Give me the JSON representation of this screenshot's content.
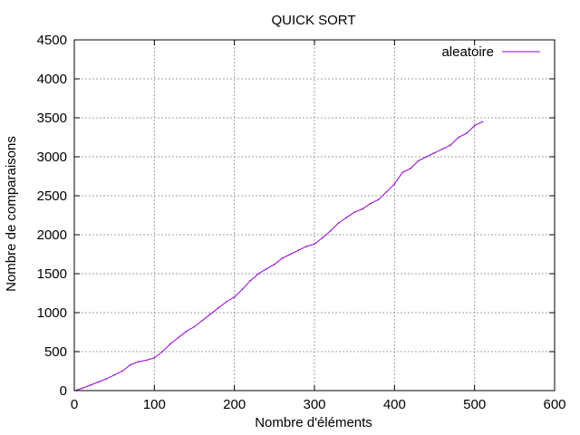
{
  "chart_data": {
    "type": "line",
    "title": "QUICK SORT",
    "xlabel": "Nombre d'éléments",
    "ylabel": "Nombre de comparaisons",
    "xlim": [
      0,
      600
    ],
    "ylim": [
      0,
      4500
    ],
    "xticks": [
      0,
      100,
      200,
      300,
      400,
      500,
      600
    ],
    "yticks": [
      0,
      500,
      1000,
      1500,
      2000,
      2500,
      3000,
      3500,
      4000,
      4500
    ],
    "grid": true,
    "legend_position": "top-right",
    "series": [
      {
        "name": "aleatoire",
        "color": "#9400d3",
        "x": [
          1,
          10,
          20,
          30,
          40,
          50,
          60,
          70,
          80,
          90,
          100,
          110,
          120,
          130,
          140,
          150,
          160,
          170,
          180,
          190,
          200,
          210,
          220,
          230,
          240,
          250,
          260,
          270,
          280,
          290,
          300,
          310,
          320,
          330,
          340,
          350,
          360,
          370,
          380,
          390,
          400,
          410,
          420,
          430,
          440,
          450,
          460,
          470,
          480,
          490,
          500,
          510
        ],
        "y": [
          0,
          30,
          70,
          110,
          150,
          200,
          250,
          330,
          370,
          390,
          420,
          500,
          600,
          680,
          760,
          820,
          900,
          980,
          1060,
          1140,
          1200,
          1300,
          1410,
          1500,
          1560,
          1620,
          1700,
          1750,
          1800,
          1850,
          1880,
          1960,
          2050,
          2150,
          2220,
          2290,
          2330,
          2400,
          2450,
          2550,
          2650,
          2800,
          2850,
          2950,
          3000,
          3050,
          3100,
          3150,
          3250,
          3300,
          3400,
          3450
        ]
      }
    ]
  }
}
